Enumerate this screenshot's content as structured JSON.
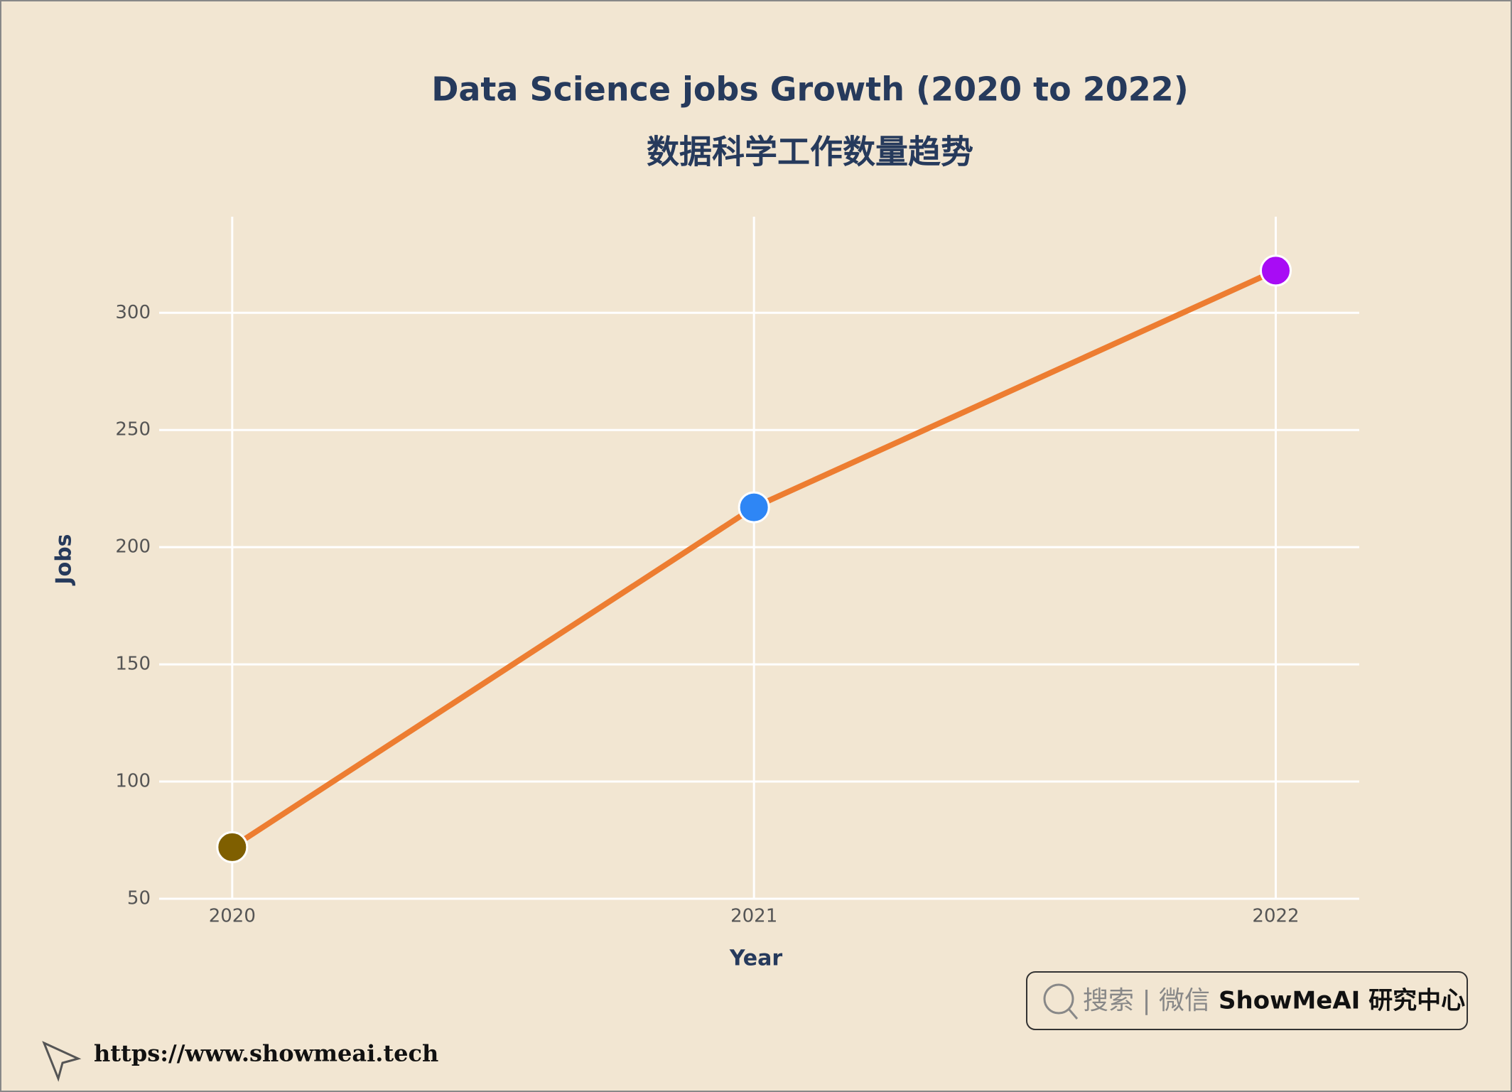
{
  "chart_data": {
    "type": "line",
    "title": "Data Science jobs Growth (2020 to 2022)",
    "subtitle": "数据科学工作数量趋势",
    "x": [
      2020,
      2021,
      2022
    ],
    "values": [
      72,
      217,
      318
    ],
    "color": "#ed7d31",
    "marker_colors": [
      "#7f5f00",
      "#2e86f5",
      "#a80cf5"
    ],
    "xlabel": "Year",
    "ylabel": "Jobs",
    "xlim": [
      2019.86,
      2022.16
    ],
    "xticks": [
      2020,
      2021,
      2022
    ],
    "ylim": [
      50,
      341
    ],
    "yticks": [
      50,
      100,
      150,
      200,
      250,
      300
    ],
    "grid": true
  },
  "watermark": {
    "search": "搜索 | 微信",
    "brand": "ShowMeAI 研究中心",
    "url": "https://www.showmeai.tech"
  }
}
